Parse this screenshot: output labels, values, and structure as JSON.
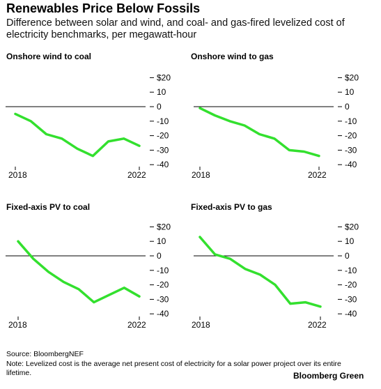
{
  "title": "Renewables Price Below Fossils",
  "subtitle": "Difference between solar and wind, and coal- and gas-fired levelized cost of electricity benchmarks, per megawatt-hour",
  "source": "Source: BloombergNEF",
  "note": "Note: Levelized cost is the average net present cost of electricity for a solar power project over its entire lifetime.",
  "brand": "Bloomberg Green",
  "colors": {
    "line": "#33e02e",
    "zero_line": "#000000"
  },
  "chart_data": [
    {
      "type": "line",
      "title": "Onshore wind to coal",
      "x": [
        2018,
        2018.5,
        2019,
        2019.5,
        2020,
        2020.5,
        2021,
        2021.5,
        2022
      ],
      "series": [
        {
          "values": [
            -5,
            -10,
            -19,
            -22,
            -29,
            -34,
            -24,
            -22,
            -27
          ]
        }
      ],
      "xticks": [
        "2018",
        "2022"
      ],
      "yticks": [
        "$20",
        "10",
        "0",
        "-10",
        "-20",
        "-30",
        "-40"
      ],
      "ylim": [
        -40,
        20
      ]
    },
    {
      "type": "line",
      "title": "Onshore wind to gas",
      "x": [
        2018,
        2018.5,
        2019,
        2019.5,
        2020,
        2020.5,
        2021,
        2021.5,
        2022
      ],
      "series": [
        {
          "values": [
            -1,
            -6,
            -10,
            -13,
            -19,
            -22,
            -30,
            -31,
            -34
          ]
        }
      ],
      "xticks": [
        "2018",
        "2022"
      ],
      "yticks": [
        "$20",
        "10",
        "0",
        "-10",
        "-20",
        "-30",
        "-40"
      ],
      "ylim": [
        -40,
        20
      ]
    },
    {
      "type": "line",
      "title": "Fixed-axis PV to coal",
      "x": [
        2018,
        2018.5,
        2019,
        2019.5,
        2020,
        2020.5,
        2021,
        2021.5,
        2022
      ],
      "series": [
        {
          "values": [
            10,
            -2,
            -11,
            -18,
            -23,
            -32,
            -27,
            -22,
            -28
          ]
        }
      ],
      "xticks": [
        "2018",
        "2022"
      ],
      "yticks": [
        "$20",
        "10",
        "0",
        "-10",
        "-20",
        "-30",
        "-40"
      ],
      "ylim": [
        -40,
        20
      ]
    },
    {
      "type": "line",
      "title": "Fixed-axis PV to gas",
      "x": [
        2018,
        2018.5,
        2019,
        2019.5,
        2020,
        2020.5,
        2021,
        2021.5,
        2022
      ],
      "series": [
        {
          "values": [
            13,
            1,
            -2,
            -9,
            -13,
            -20,
            -33,
            -32,
            -35
          ]
        }
      ],
      "xticks": [
        "2018",
        "2022"
      ],
      "yticks": [
        "$20",
        "10",
        "0",
        "-10",
        "-20",
        "-30",
        "-40"
      ],
      "ylim": [
        -40,
        20
      ]
    }
  ]
}
